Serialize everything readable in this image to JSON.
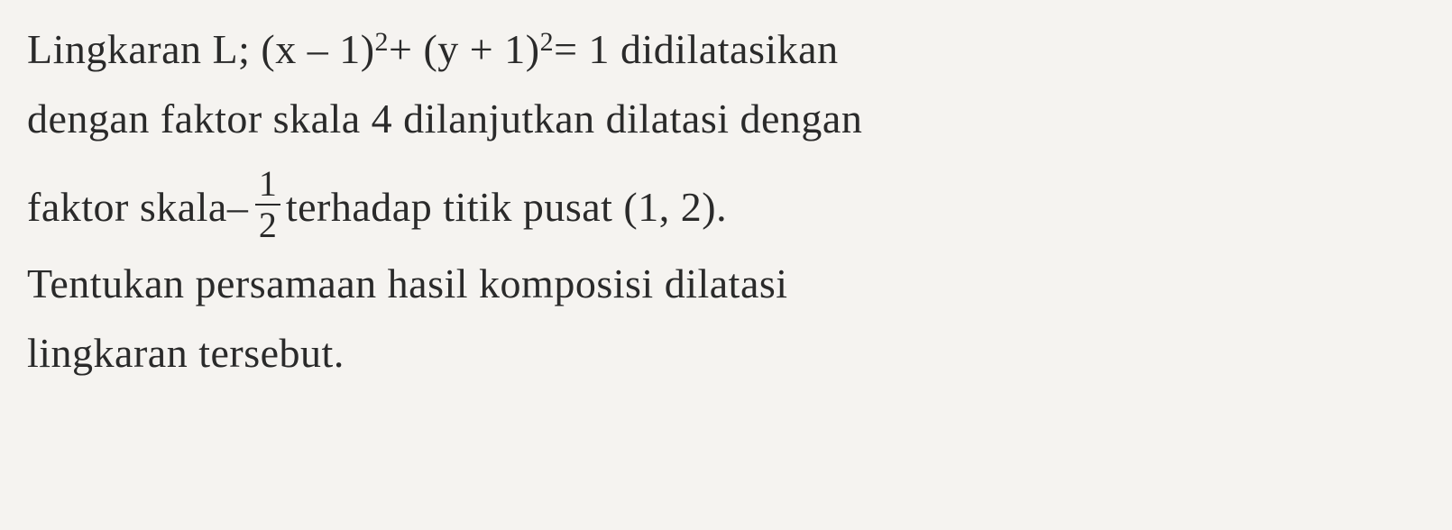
{
  "document": {
    "type": "math-problem",
    "language": "Indonesian",
    "font_family": "Times New Roman",
    "font_size_pt": 46,
    "sup_font_size_pt": 30,
    "frac_font_size_pt": 40,
    "text_color": "#2a2a2a",
    "background_color": "#f5f3f0",
    "line_spacing": 1.5,
    "lines": {
      "line1_part1": "Lingkaran L; (x – 1)",
      "line1_sup1": "2",
      "line1_part2": " + (y + 1)",
      "line1_sup2": "2",
      "line1_part3": " = 1 didilatasikan",
      "line2": "dengan faktor skala 4 dilanjutkan dilatasi dengan",
      "line3_part1": "faktor skala ",
      "line3_neg": "–",
      "line3_frac_num": "1",
      "line3_frac_den": "2",
      "line3_part2": " terhadap titik pusat (1, 2).",
      "line4": "Tentukan persamaan hasil komposisi dilatasi",
      "line5": "lingkaran tersebut."
    }
  }
}
